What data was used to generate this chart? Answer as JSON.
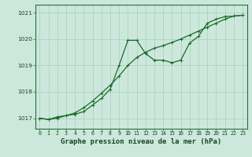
{
  "title": "Graphe pression niveau de la mer (hPa)",
  "bg_color": "#cce8dc",
  "line_color": "#1a6b2a",
  "grid_color": "#aacfba",
  "axis_color": "#2d6b3a",
  "label_color": "#1a4520",
  "xlim": [
    -0.5,
    23.5
  ],
  "ylim": [
    1016.6,
    1021.3
  ],
  "yticks": [
    1017,
    1018,
    1019,
    1020,
    1021
  ],
  "xticks": [
    0,
    1,
    2,
    3,
    4,
    5,
    6,
    7,
    8,
    9,
    10,
    11,
    12,
    13,
    14,
    15,
    16,
    17,
    18,
    19,
    20,
    21,
    22,
    23
  ],
  "line1_x": [
    0,
    1,
    2,
    3,
    4,
    5,
    6,
    7,
    8,
    9,
    10,
    11,
    12,
    13,
    14,
    15,
    16,
    17,
    18,
    19,
    20,
    21,
    22,
    23
  ],
  "line1_y": [
    1017.0,
    1016.95,
    1017.0,
    1017.1,
    1017.15,
    1017.25,
    1017.5,
    1017.75,
    1018.1,
    1019.0,
    1019.95,
    1019.95,
    1019.45,
    1019.2,
    1019.2,
    1019.1,
    1019.2,
    1019.85,
    1020.1,
    1020.6,
    1020.75,
    1020.85,
    1020.87,
    1020.9
  ],
  "line2_x": [
    0,
    1,
    2,
    3,
    4,
    5,
    6,
    7,
    8,
    9,
    10,
    11,
    12,
    13,
    14,
    15,
    16,
    17,
    18,
    19,
    20,
    21,
    22,
    23
  ],
  "line2_y": [
    1017.0,
    1016.95,
    1017.05,
    1017.1,
    1017.2,
    1017.4,
    1017.65,
    1017.95,
    1018.25,
    1018.6,
    1019.0,
    1019.3,
    1019.5,
    1019.65,
    1019.75,
    1019.87,
    1020.0,
    1020.15,
    1020.3,
    1020.45,
    1020.6,
    1020.75,
    1020.87,
    1020.9
  ],
  "marker_size": 3.0,
  "line_width": 0.9,
  "title_fontsize": 6.5,
  "tick_fontsize": 4.8
}
